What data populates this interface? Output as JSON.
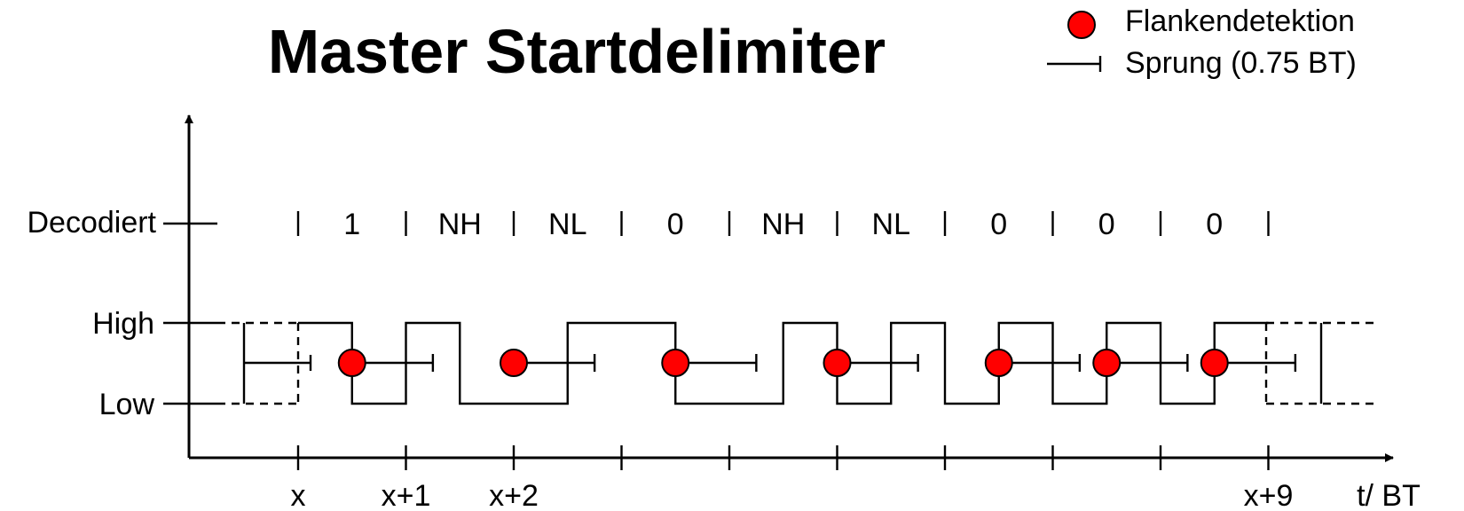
{
  "title": "Master Startdelimiter",
  "legend": {
    "edge_detection": "Flankendetektion",
    "jump": "Sprung (0.75 BT)",
    "edge_color": "#ff0000"
  },
  "axis": {
    "y_levels": [
      "High",
      "Low"
    ],
    "decoded_row_label": "Decodiert",
    "x_label": "t/ BT",
    "x_tick_labels": [
      "x",
      "x+1",
      "x+2",
      "",
      "",
      "",
      "",
      "",
      "",
      "x+9"
    ]
  },
  "decoded_symbols": [
    "1",
    "NH",
    "NL",
    "0",
    "NH",
    "NL",
    "0",
    "0",
    "0"
  ],
  "signal_levels": [
    "H",
    "L",
    "H",
    "L",
    "L",
    "H",
    "H",
    "L",
    "L",
    "H",
    "L",
    "H",
    "L",
    "H",
    "L",
    "H",
    "L",
    "H"
  ],
  "edge_detections_bt": [
    0.5,
    2.0,
    3.5,
    5.0,
    6.5,
    7.5,
    8.5
  ],
  "jump_length_bt": 0.75
}
